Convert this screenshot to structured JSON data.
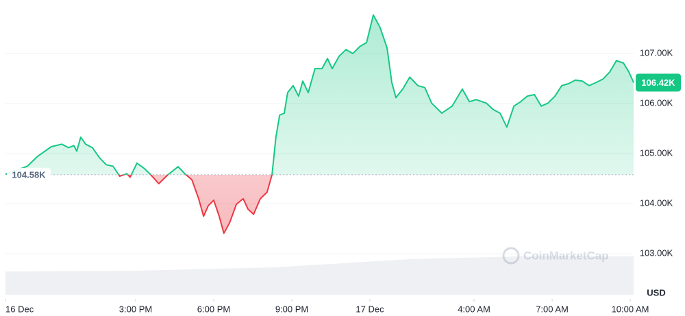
{
  "chart_data": {
    "type": "baseline-area",
    "x": [
      0,
      0.84,
      1.24,
      1.76,
      2.16,
      2.42,
      2.63,
      2.74,
      2.89,
      3.08,
      3.34,
      3.61,
      3.87,
      4.13,
      4.39,
      4.66,
      4.79,
      5.05,
      5.32,
      5.58,
      5.89,
      6.24,
      6.63,
      6.89,
      7.16,
      7.42,
      7.61,
      7.79,
      8,
      8.21,
      8.39,
      8.61,
      8.87,
      9.13,
      9.32,
      9.53,
      9.79,
      10.05,
      10.24,
      10.39,
      10.53,
      10.71,
      10.84,
      11.05,
      11.26,
      11.42,
      11.63,
      11.89,
      12.16,
      12.37,
      12.55,
      12.82,
      13.08,
      13.34,
      13.61,
      13.87,
      14.13,
      14.39,
      14.66,
      14.84,
      15,
      15.26,
      15.53,
      15.84,
      16.11,
      16.37,
      16.76,
      17.16,
      17.55,
      17.82,
      18.08,
      18.47,
      18.74,
      19,
      19.26,
      19.53,
      19.79,
      20.05,
      20.32,
      20.58,
      20.84,
      21.11,
      21.37,
      21.63,
      21.89,
      22.16,
      22.42,
      22.68,
      22.95,
      23.21,
      23.47,
      23.74,
      23.95,
      24.13
    ],
    "values": [
      104.59,
      104.75,
      104.95,
      105.14,
      105.19,
      105.12,
      105.16,
      105.05,
      105.33,
      105.19,
      105.12,
      104.92,
      104.78,
      104.75,
      104.55,
      104.6,
      104.53,
      104.81,
      104.71,
      104.58,
      104.4,
      104.58,
      104.74,
      104.6,
      104.48,
      104.1,
      103.75,
      103.96,
      104.07,
      103.75,
      103.41,
      103.62,
      103.99,
      104.1,
      103.89,
      103.79,
      104.1,
      104.23,
      104.58,
      105.33,
      105.77,
      105.81,
      106.22,
      106.36,
      106.15,
      106.45,
      106.22,
      106.7,
      106.7,
      106.9,
      106.7,
      106.95,
      107.08,
      107,
      107.14,
      107.22,
      107.77,
      107.52,
      107.11,
      106.42,
      106.12,
      106.29,
      106.53,
      106.36,
      106.32,
      106.01,
      105.81,
      105.95,
      106.29,
      106.04,
      106.08,
      106.01,
      105.88,
      105.81,
      105.53,
      105.95,
      106.04,
      106.15,
      106.18,
      105.95,
      106.01,
      106.15,
      106.36,
      106.4,
      106.47,
      106.45,
      106.36,
      106.42,
      106.49,
      106.63,
      106.86,
      106.81,
      106.63,
      106.42
    ],
    "up_color": "#16c784",
    "down_color": "#ea3943",
    "baseline": {
      "value": 104.58,
      "label": "104.58K"
    },
    "last_price": {
      "value": 106.42,
      "label": "106.42K"
    },
    "xlim": [
      0,
      24.13
    ],
    "xticks": [
      {
        "value": 0,
        "label": "16 Dec"
      },
      {
        "value": 5,
        "label": "3:00 PM"
      },
      {
        "value": 8,
        "label": "6:00 PM"
      },
      {
        "value": 11,
        "label": "9:00 PM"
      },
      {
        "value": 14,
        "label": "17 Dec"
      },
      {
        "value": 18,
        "label": "4:00 AM"
      },
      {
        "value": 21,
        "label": "7:00 AM"
      },
      {
        "value": 24,
        "label": "10:00 AM"
      }
    ],
    "ylim": [
      102.1,
      108.07
    ],
    "yticks": [
      {
        "value": 103,
        "label": "103.00K"
      },
      {
        "value": 104,
        "label": "104.00K"
      },
      {
        "value": 105,
        "label": "105.00K"
      },
      {
        "value": 106,
        "label": "106.00K"
      },
      {
        "value": 107,
        "label": "107.00K"
      }
    ],
    "y_unit": "USD",
    "grid": true,
    "watermark": "CoinMarketCap"
  }
}
